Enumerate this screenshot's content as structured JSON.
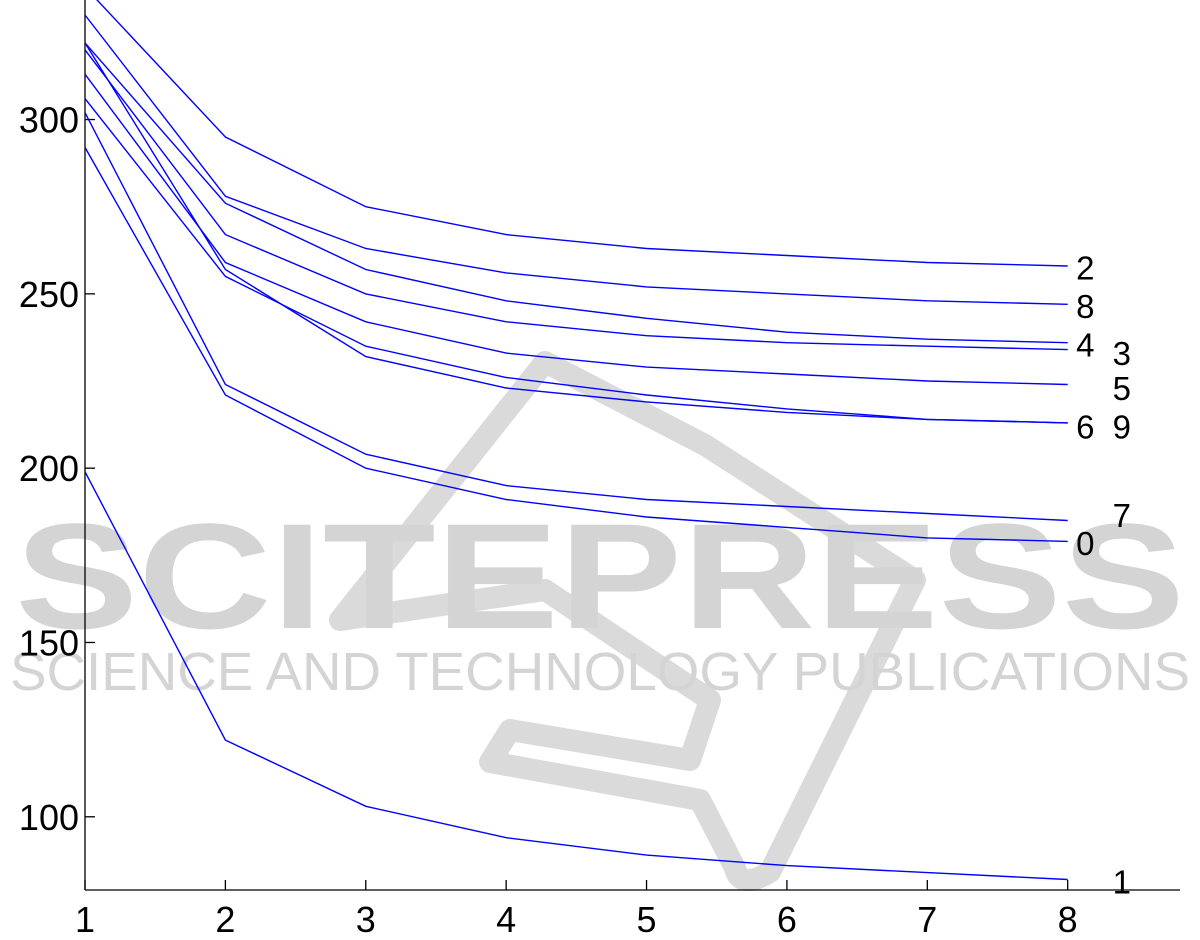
{
  "chart_data": {
    "type": "line",
    "title": "",
    "xlabel": "",
    "ylabel": "",
    "x": [
      1,
      2,
      3,
      4,
      5,
      6,
      7,
      8
    ],
    "xlim": [
      1,
      8.8
    ],
    "ylim": [
      79,
      332
    ],
    "xticks": [
      "1",
      "2",
      "3",
      "4",
      "5",
      "6",
      "7",
      "8"
    ],
    "yticks": [
      "100",
      "150",
      "200",
      "250",
      "300"
    ],
    "ytick_values": [
      100,
      150,
      200,
      250,
      300
    ],
    "grid": false,
    "line_color": "#0000ff",
    "series": [
      {
        "name": "2",
        "values": [
          338,
          295,
          275,
          267,
          263,
          261,
          259,
          258
        ]
      },
      {
        "name": "8",
        "values": [
          330,
          278,
          263,
          256,
          252,
          250,
          248,
          247
        ]
      },
      {
        "name": "4",
        "values": [
          322,
          276,
          257,
          248,
          243,
          239,
          237,
          236
        ]
      },
      {
        "name": "3",
        "values": [
          320,
          267,
          250,
          242,
          238,
          236,
          235,
          234
        ]
      },
      {
        "name": "5",
        "values": [
          313,
          259,
          242,
          233,
          229,
          227,
          225,
          224
        ]
      },
      {
        "name": "6",
        "values": [
          306,
          255,
          235,
          226,
          221,
          217,
          214,
          213
        ]
      },
      {
        "name": "9",
        "values": [
          322,
          257,
          232,
          223,
          219,
          216,
          214,
          213
        ]
      },
      {
        "name": "7",
        "values": [
          302,
          224,
          204,
          195,
          191,
          189,
          187,
          185
        ]
      },
      {
        "name": "0",
        "values": [
          292,
          221,
          200,
          191,
          186,
          183,
          180,
          179
        ]
      },
      {
        "name": "1",
        "values": [
          199,
          122,
          103,
          94,
          89,
          86,
          84,
          82
        ]
      }
    ],
    "labels": [
      {
        "text": "2",
        "x": 8.06,
        "y": 257.5
      },
      {
        "text": "8",
        "x": 8.06,
        "y": 246.5
      },
      {
        "text": "4",
        "x": 8.06,
        "y": 235.5
      },
      {
        "text": "3",
        "x": 8.32,
        "y": 233
      },
      {
        "text": "5",
        "x": 8.32,
        "y": 223
      },
      {
        "text": "6",
        "x": 8.06,
        "y": 212
      },
      {
        "text": "9",
        "x": 8.32,
        "y": 212
      },
      {
        "text": "7",
        "x": 8.32,
        "y": 186.5
      },
      {
        "text": "0",
        "x": 8.06,
        "y": 178.5
      },
      {
        "text": "1",
        "x": 8.32,
        "y": 81.5
      }
    ]
  },
  "watermark": {
    "brand": "SCITEPRESS",
    "tagline": "SCIENCE AND TECHNOLOGY PUBLICATIONS",
    "color": "#d4d4d4"
  }
}
